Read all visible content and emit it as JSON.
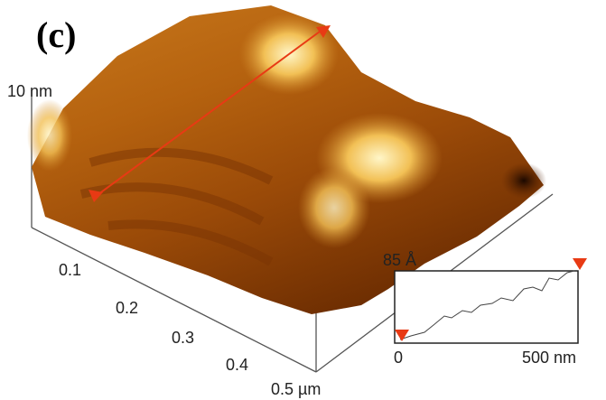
{
  "panel_label": "(c)",
  "z_axis": {
    "label": "10 nm"
  },
  "x_axis": {
    "ticks": [
      "0.1",
      "0.2",
      "0.3",
      "0.4",
      "0.5 µm"
    ]
  },
  "profile": {
    "y_label": "85 Å",
    "x_start": "0",
    "x_end": "500 nm"
  }
}
